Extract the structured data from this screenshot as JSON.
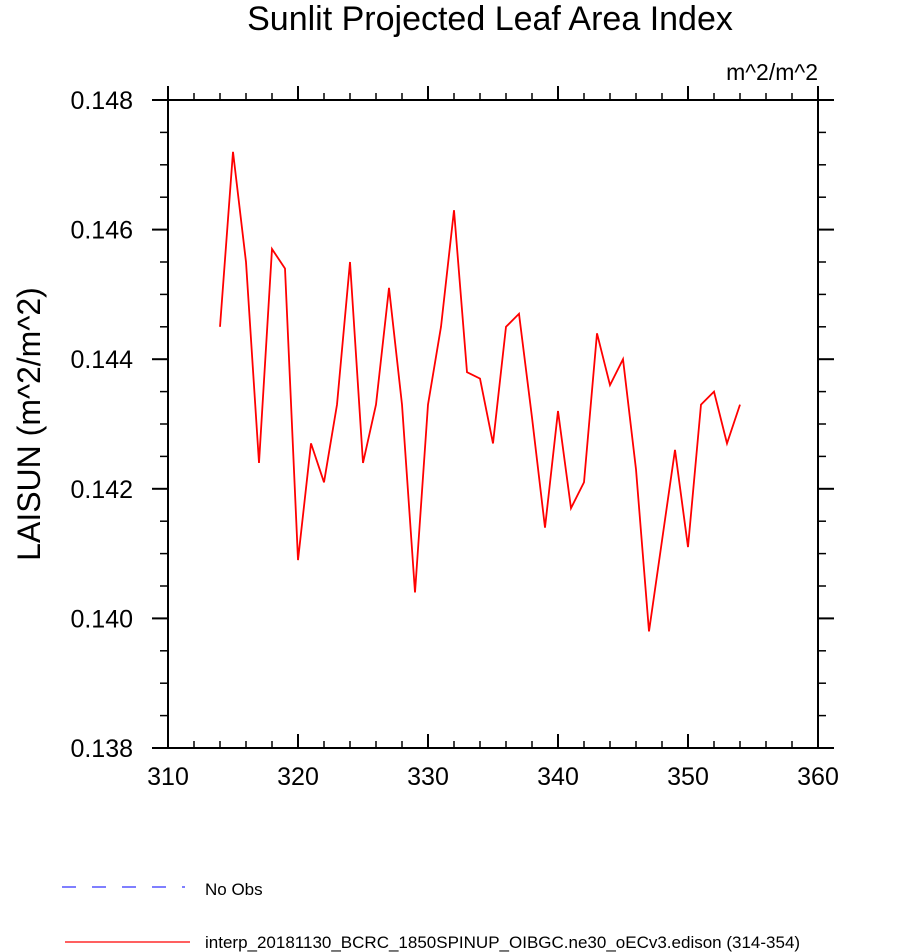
{
  "chart_data": {
    "type": "line",
    "title": "Sunlit Projected Leaf Area Index",
    "units_label": "m^2/m^2",
    "xlabel": "",
    "ylabel": "LAISUN  (m^2/m^2)",
    "xlim": [
      310,
      360
    ],
    "ylim": [
      0.138,
      0.148
    ],
    "x_ticks": [
      310,
      320,
      330,
      340,
      350,
      360
    ],
    "x_tick_labels": [
      "310",
      "320",
      "330",
      "340",
      "350",
      "360"
    ],
    "y_ticks": [
      0.138,
      0.14,
      0.142,
      0.144,
      0.146,
      0.148
    ],
    "y_tick_labels": [
      "0.138",
      "0.140",
      "0.142",
      "0.144",
      "0.146",
      "0.148"
    ],
    "grid": false,
    "legend_position": "bottom",
    "series": [
      {
        "name": "interp_20181130_BCRC_1850SPINUP_OIBGC.ne30_oECv3.edison (314-354)",
        "color": "#ff0000",
        "style": "solid",
        "x": [
          314,
          315,
          316,
          317,
          318,
          319,
          320,
          321,
          322,
          323,
          324,
          325,
          326,
          327,
          328,
          329,
          330,
          331,
          332,
          333,
          334,
          335,
          336,
          337,
          338,
          339,
          340,
          341,
          342,
          343,
          344,
          345,
          346,
          347,
          348,
          349,
          350,
          351,
          352,
          353,
          354
        ],
        "values": [
          0.1445,
          0.1472,
          0.1455,
          0.1424,
          0.1457,
          0.1454,
          0.1409,
          0.1427,
          0.1421,
          0.1433,
          0.1455,
          0.1424,
          0.1433,
          0.1451,
          0.1433,
          0.1404,
          0.1433,
          0.1445,
          0.1463,
          0.1438,
          0.1437,
          0.1427,
          0.1445,
          0.1447,
          0.1431,
          0.1414,
          0.1432,
          0.1417,
          0.1421,
          0.1444,
          0.1436,
          0.144,
          0.1423,
          0.1398,
          0.1412,
          0.1426,
          0.1411,
          0.1433,
          0.1435,
          0.1427,
          0.1433
        ]
      },
      {
        "name": "No Obs",
        "color": "#3333ff",
        "style": "dashed",
        "x": [],
        "values": []
      }
    ]
  }
}
